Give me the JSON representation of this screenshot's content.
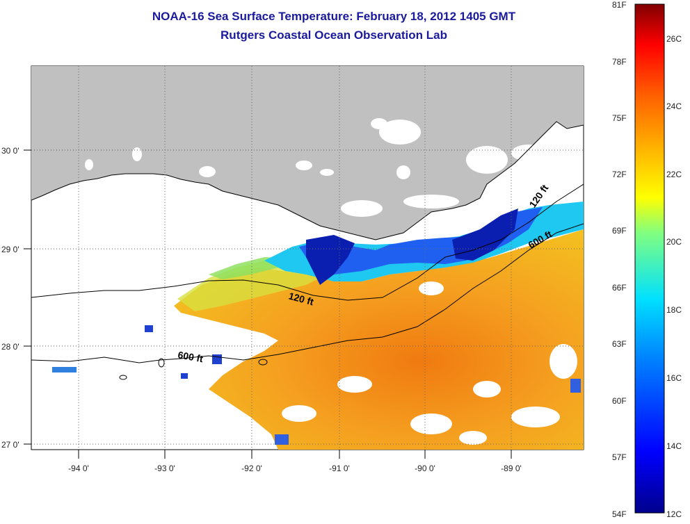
{
  "title": "NOAA-16 Sea Surface Temperature:  February 18, 2012 1405 GMT",
  "subtitle": "Rutgers Coastal Ocean Observation Lab",
  "axes": {
    "lon_labels": [
      "-94 0'",
      "-93 0'",
      "-92 0'",
      "-91 0'",
      "-90 0'",
      "-89 0'"
    ],
    "lat_labels": [
      "30 0'",
      "29 0'",
      "28 0'",
      "27 0'"
    ]
  },
  "contours": {
    "label_120_left": "120 ft",
    "label_120_right": "120 ft",
    "label_600_left": "600 ft",
    "label_600_right": "600 ft"
  },
  "colorbar": {
    "fahrenheit": [
      "81F",
      "78F",
      "75F",
      "72F",
      "69F",
      "66F",
      "63F",
      "60F",
      "57F",
      "54F"
    ],
    "celsius": [
      "26C",
      "24C",
      "22C",
      "20C",
      "18C",
      "16C",
      "14C",
      "12C"
    ]
  },
  "colors": {
    "title": "#1a1a9c",
    "land": "#c0c0c0",
    "warm": "#f5a000",
    "cold": "#0a1fb0",
    "mid": "#1ec8f0"
  },
  "chart_data": {
    "type": "heatmap",
    "title": "NOAA-16 Sea Surface Temperature:  February 18, 2012 1405 GMT",
    "subtitle": "Rutgers Coastal Ocean Observation Lab",
    "xlim": [
      -94.5,
      -88.3
    ],
    "ylim": [
      26.95,
      30.85
    ],
    "x_ticks": [
      -94,
      -93,
      -92,
      -91,
      -90,
      -89
    ],
    "y_ticks": [
      27,
      28,
      29,
      30
    ],
    "colorbar_range_F": [
      54,
      81
    ],
    "colorbar_range_C": [
      12,
      27
    ]
  }
}
